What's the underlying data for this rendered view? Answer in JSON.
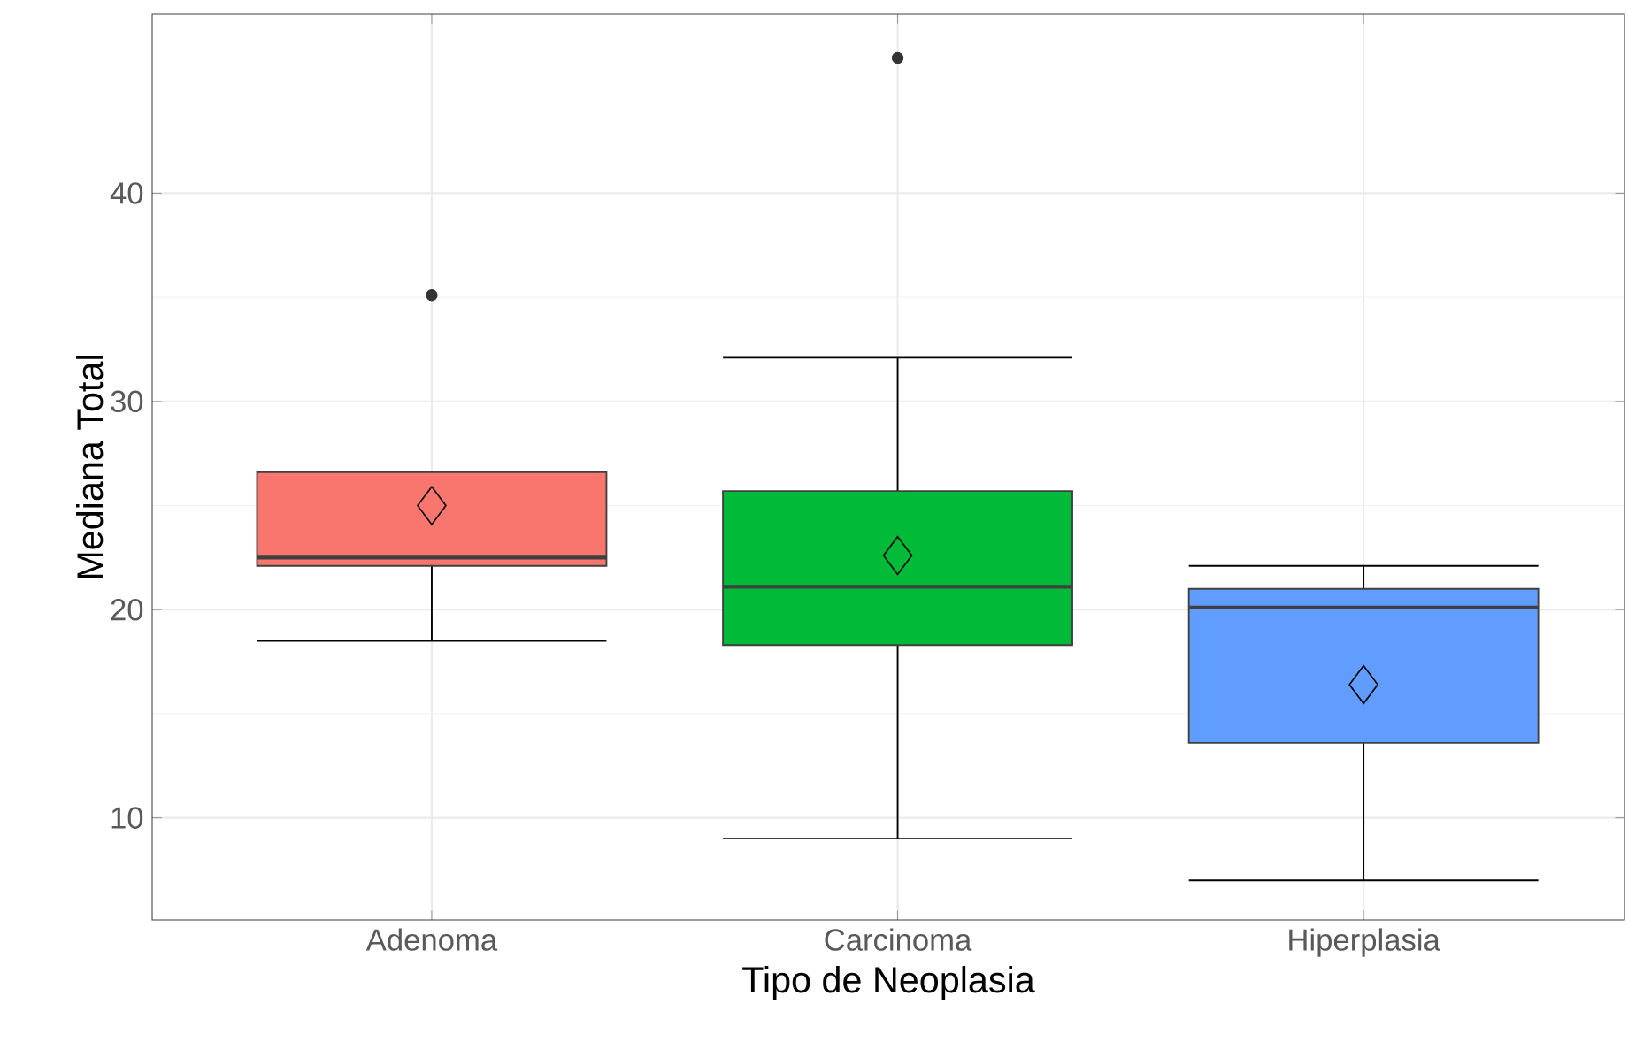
{
  "chart_data": {
    "type": "box",
    "xlabel": "Tipo de Neoplasia",
    "ylabel": "Mediana Total",
    "categories": [
      "Adenoma",
      "Carcinoma",
      "Hiperplasia"
    ],
    "colors": [
      "#f8766d",
      "#00ba38",
      "#619cff"
    ],
    "boxes": [
      {
        "low": 18.5,
        "q1": 22.1,
        "median": 22.5,
        "q3": 26.6,
        "high": 26.6,
        "mean": 25.0,
        "outliers": [
          35.1
        ]
      },
      {
        "low": 9.0,
        "q1": 18.3,
        "median": 21.1,
        "q3": 25.7,
        "high": 32.1,
        "mean": 22.6,
        "outliers": [
          46.5
        ]
      },
      {
        "low": 7.0,
        "q1": 13.6,
        "median": 20.1,
        "q3": 21.0,
        "high": 22.1,
        "mean": 16.4
      }
    ],
    "ylim": [
      5.1,
      48.6
    ],
    "yticks": [
      10,
      20,
      30,
      40
    ],
    "grid": true,
    "legend": false
  }
}
